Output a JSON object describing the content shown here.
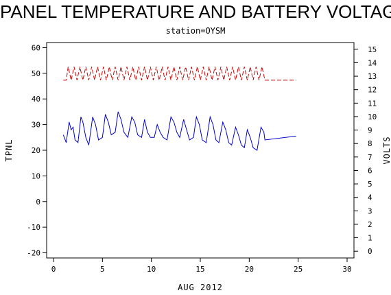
{
  "chart_data": {
    "type": "line",
    "title": "PANEL TEMPERATURE AND BATTERY VOLTAGE",
    "subtitle": "station=OYSM",
    "xlabel": "AUG 2012",
    "ylabel_left": "TPNL",
    "ylabel_right": "VOLTS",
    "xlim": [
      0,
      30
    ],
    "ylim_left": [
      -22,
      62
    ],
    "ylim_right": [
      -0.5,
      15.5
    ],
    "x_ticks": [
      "0",
      "5",
      "10",
      "15",
      "20",
      "25",
      "30"
    ],
    "y_ticks_left": [
      "-20",
      "-10",
      "0",
      "10",
      "20",
      "30",
      "40",
      "50",
      "60"
    ],
    "y_ticks_right": [
      "0",
      "1",
      "2",
      "3",
      "4",
      "5",
      "6",
      "7",
      "8",
      "9",
      "10",
      "11",
      "12",
      "13",
      "14",
      "15"
    ],
    "series": [
      {
        "color": "#0000cc",
        "axis": "left",
        "style": "solid",
        "points": [
          [
            1.0,
            26
          ],
          [
            1.3,
            23
          ],
          [
            1.6,
            31
          ],
          [
            1.8,
            28
          ],
          [
            2.0,
            29
          ],
          [
            2.2,
            24
          ],
          [
            2.5,
            23
          ],
          [
            2.8,
            33
          ],
          [
            3.0,
            31
          ],
          [
            3.3,
            25
          ],
          [
            3.6,
            22
          ],
          [
            4.0,
            33
          ],
          [
            4.3,
            30
          ],
          [
            4.6,
            24
          ],
          [
            5.0,
            25
          ],
          [
            5.3,
            34
          ],
          [
            5.6,
            31
          ],
          [
            5.9,
            26
          ],
          [
            6.3,
            27
          ],
          [
            6.6,
            35
          ],
          [
            6.9,
            32
          ],
          [
            7.2,
            27
          ],
          [
            7.6,
            25
          ],
          [
            8.0,
            33
          ],
          [
            8.3,
            31
          ],
          [
            8.6,
            26
          ],
          [
            9.0,
            25
          ],
          [
            9.3,
            32
          ],
          [
            9.6,
            27
          ],
          [
            9.9,
            25
          ],
          [
            10.3,
            25
          ],
          [
            10.6,
            30
          ],
          [
            10.9,
            27
          ],
          [
            11.2,
            25
          ],
          [
            11.6,
            24
          ],
          [
            12.0,
            33
          ],
          [
            12.3,
            31
          ],
          [
            12.6,
            27
          ],
          [
            12.9,
            25
          ],
          [
            13.3,
            32
          ],
          [
            13.6,
            28
          ],
          [
            13.9,
            24
          ],
          [
            14.3,
            25
          ],
          [
            14.6,
            33
          ],
          [
            14.9,
            30
          ],
          [
            15.2,
            24
          ],
          [
            15.6,
            23
          ],
          [
            16.0,
            33
          ],
          [
            16.3,
            30
          ],
          [
            16.6,
            24
          ],
          [
            16.9,
            23
          ],
          [
            17.3,
            31
          ],
          [
            17.6,
            28
          ],
          [
            17.9,
            23
          ],
          [
            18.2,
            22
          ],
          [
            18.6,
            29
          ],
          [
            18.9,
            26
          ],
          [
            19.2,
            22
          ],
          [
            19.5,
            21
          ],
          [
            19.8,
            28
          ],
          [
            20.1,
            25
          ],
          [
            20.4,
            21
          ],
          [
            20.8,
            20
          ],
          [
            21.2,
            29
          ],
          [
            21.5,
            27
          ],
          [
            21.6,
            24
          ],
          [
            24.8,
            25.5
          ]
        ]
      },
      {
        "color": "#cc0000",
        "axis": "right",
        "style": "dashed",
        "points": [
          [
            1.0,
            12.7
          ],
          [
            1.3,
            12.7
          ],
          [
            1.5,
            13.7
          ],
          [
            1.8,
            12.7
          ],
          [
            2.1,
            13.7
          ],
          [
            2.4,
            12.7
          ],
          [
            2.7,
            13.7
          ],
          [
            3.0,
            12.7
          ],
          [
            3.3,
            13.7
          ],
          [
            3.6,
            12.7
          ],
          [
            3.9,
            13.7
          ],
          [
            4.2,
            12.7
          ],
          [
            4.5,
            13.7
          ],
          [
            4.8,
            12.7
          ],
          [
            5.1,
            13.7
          ],
          [
            5.4,
            12.7
          ],
          [
            5.7,
            13.7
          ],
          [
            6.0,
            12.7
          ],
          [
            6.3,
            13.7
          ],
          [
            6.6,
            12.7
          ],
          [
            6.9,
            13.7
          ],
          [
            7.2,
            12.7
          ],
          [
            7.5,
            13.7
          ],
          [
            7.8,
            12.7
          ],
          [
            8.1,
            13.7
          ],
          [
            8.4,
            12.7
          ],
          [
            8.7,
            13.7
          ],
          [
            9.0,
            12.7
          ],
          [
            9.3,
            13.7
          ],
          [
            9.6,
            12.7
          ],
          [
            9.9,
            13.7
          ],
          [
            10.2,
            12.7
          ],
          [
            10.5,
            13.7
          ],
          [
            10.8,
            12.7
          ],
          [
            11.1,
            13.7
          ],
          [
            11.4,
            12.7
          ],
          [
            11.7,
            13.7
          ],
          [
            12.0,
            12.7
          ],
          [
            12.3,
            13.7
          ],
          [
            12.6,
            12.7
          ],
          [
            12.9,
            13.7
          ],
          [
            13.2,
            12.7
          ],
          [
            13.5,
            13.7
          ],
          [
            13.8,
            12.7
          ],
          [
            14.1,
            13.7
          ],
          [
            14.4,
            12.7
          ],
          [
            14.7,
            13.7
          ],
          [
            15.0,
            12.7
          ],
          [
            15.3,
            13.7
          ],
          [
            15.6,
            12.7
          ],
          [
            15.9,
            13.7
          ],
          [
            16.2,
            12.7
          ],
          [
            16.5,
            13.7
          ],
          [
            16.8,
            12.7
          ],
          [
            17.1,
            13.7
          ],
          [
            17.4,
            12.7
          ],
          [
            17.7,
            13.7
          ],
          [
            18.0,
            12.7
          ],
          [
            18.3,
            13.7
          ],
          [
            18.6,
            12.7
          ],
          [
            18.9,
            13.7
          ],
          [
            19.2,
            12.7
          ],
          [
            19.5,
            13.7
          ],
          [
            19.8,
            12.7
          ],
          [
            20.1,
            13.7
          ],
          [
            20.4,
            12.7
          ],
          [
            20.7,
            13.7
          ],
          [
            21.0,
            12.7
          ],
          [
            21.3,
            13.7
          ],
          [
            21.6,
            12.7
          ],
          [
            24.8,
            12.7
          ]
        ]
      }
    ]
  }
}
